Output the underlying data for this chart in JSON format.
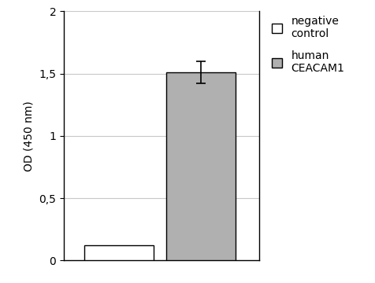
{
  "categories": [
    "negative control",
    "human CEACAM1"
  ],
  "values": [
    0.12,
    1.51
  ],
  "errors": [
    0.02,
    0.09
  ],
  "bar_colors": [
    "#ffffff",
    "#b0b0b0"
  ],
  "bar_edgecolors": [
    "#000000",
    "#000000"
  ],
  "ylabel": "OD (450 nm)",
  "ylim": [
    0,
    2.0
  ],
  "yticks": [
    0,
    0.5,
    1.0,
    1.5,
    2.0
  ],
  "ytick_labels": [
    "0",
    "0,5",
    "1",
    "1,5",
    "2"
  ],
  "bar_width": 0.38,
  "bar_positions": [
    0.55,
    1.0
  ],
  "legend_labels": [
    "negative\ncontrol",
    "human\nCEACAM1"
  ],
  "legend_colors": [
    "#ffffff",
    "#b0b0b0"
  ],
  "legend_edgecolors": [
    "#000000",
    "#000000"
  ],
  "error_color": "#000000",
  "grid_color": "#c8c8c8",
  "background_color": "#ffffff",
  "tick_fontsize": 10,
  "ylabel_fontsize": 10
}
